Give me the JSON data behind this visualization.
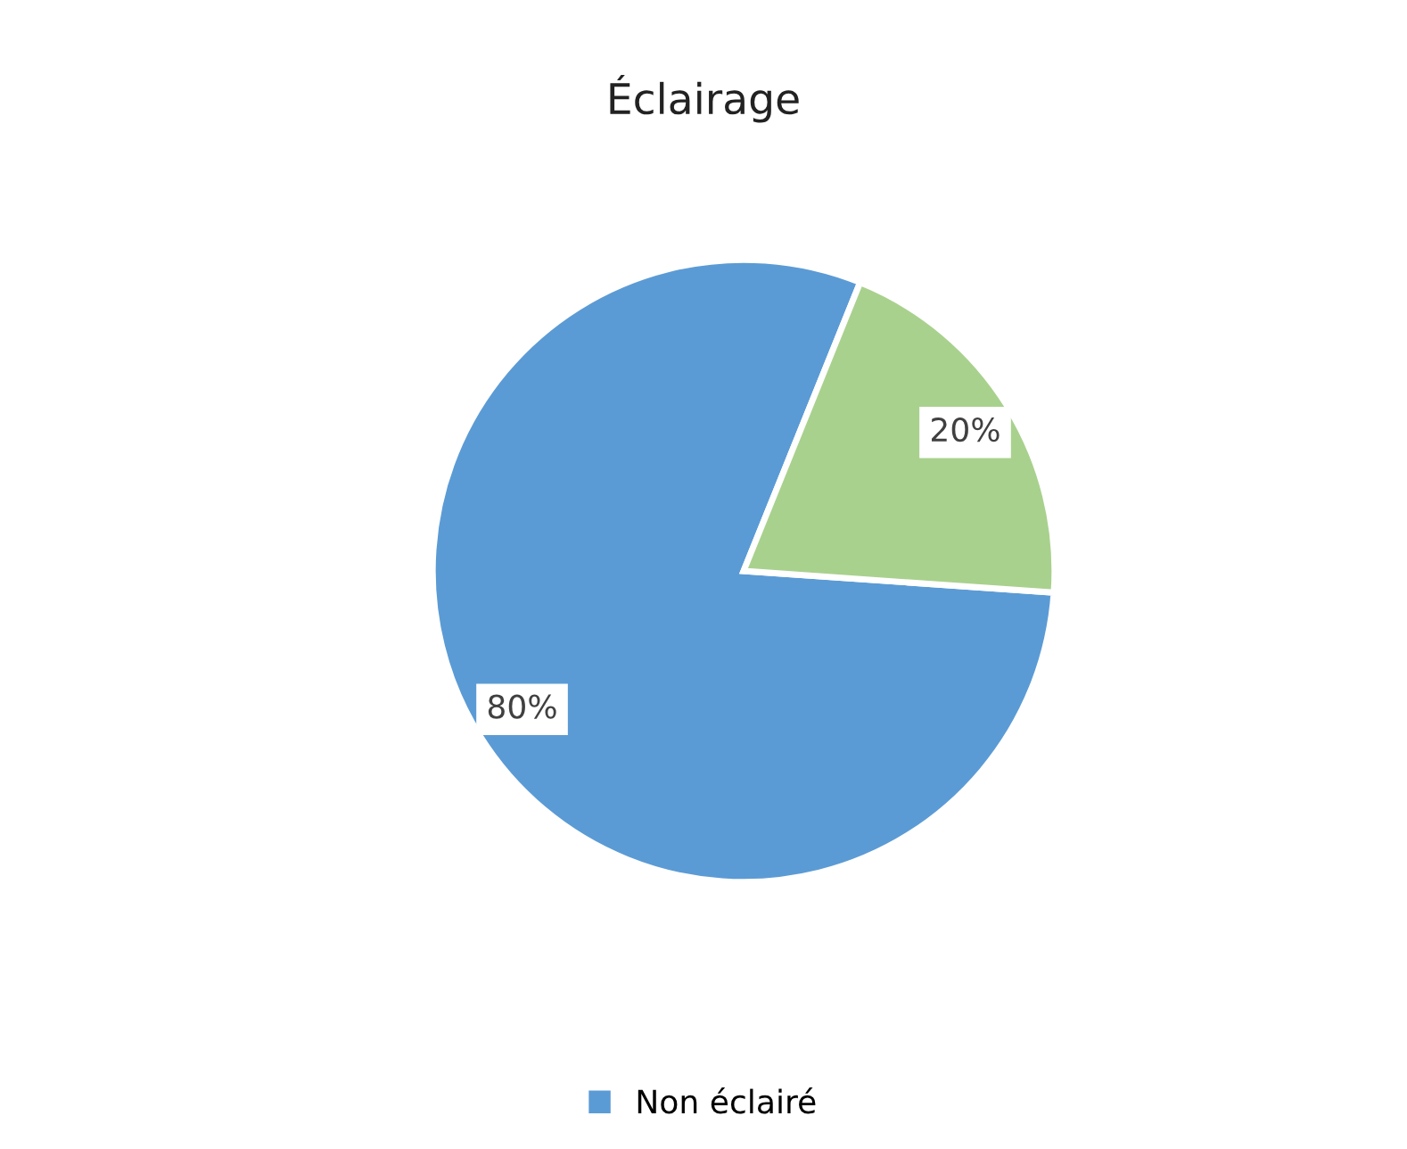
{
  "chart_data": {
    "type": "pie",
    "title": "Éclairage",
    "categories": [
      "Non éclairé",
      null
    ],
    "values": [
      80,
      20
    ],
    "colors": [
      "#5b9bd5",
      "#a9d18e"
    ],
    "value_labels": [
      "80%",
      "20%"
    ],
    "legend": "bottom"
  }
}
